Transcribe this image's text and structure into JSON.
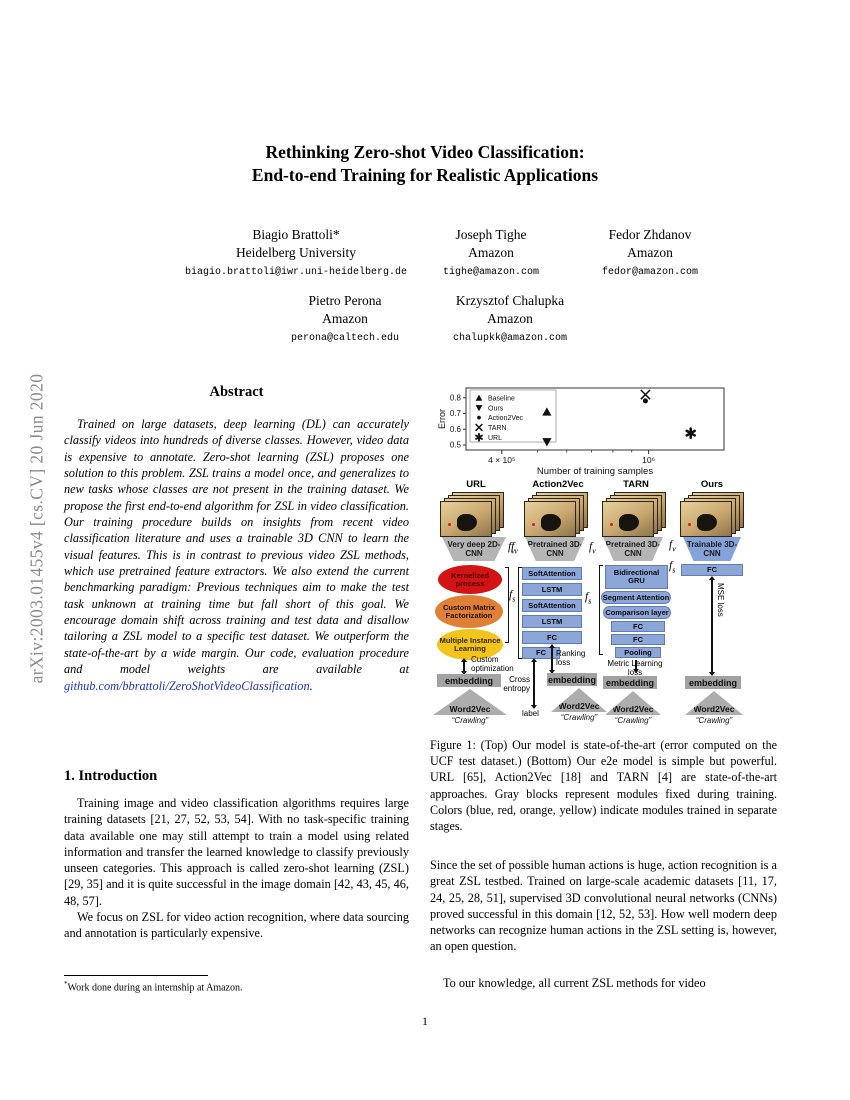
{
  "arxiv_banner": "arXiv:2003.01455v4  [cs.CV]  20 Jun 2020",
  "title": {
    "line1": "Rethinking Zero-shot Video Classification:",
    "line2": "End-to-end Training for Realistic Applications"
  },
  "authors": [
    {
      "name": "Biagio Brattoli*",
      "affiliation": "Heidelberg University",
      "email": "biagio.brattoli@iwr.uni-heidelberg.de"
    },
    {
      "name": "Joseph Tighe",
      "affiliation": "Amazon",
      "email": "tighe@amazon.com"
    },
    {
      "name": "Fedor Zhdanov",
      "affiliation": "Amazon",
      "email": "fedor@amazon.com"
    },
    {
      "name": "Pietro Perona",
      "affiliation": "Amazon",
      "email": "perona@caltech.edu"
    },
    {
      "name": "Krzysztof Chalupka",
      "affiliation": "Amazon",
      "email": "chalupkk@amazon.com"
    }
  ],
  "abstract": {
    "heading": "Abstract",
    "text": "Trained on large datasets, deep learning (DL) can accurately classify videos into hundreds of diverse classes. However, video data is expensive to annotate. Zero-shot learning (ZSL) proposes one solution to this problem. ZSL trains a model once, and generalizes to new tasks whose classes are not present in the training dataset. We propose the first end-to-end algorithm for ZSL in video classification. Our training procedure builds on insights from recent video classification literature and uses a trainable 3D CNN to learn the visual features. This is in contrast to previous video ZSL methods, which use pretrained feature extractors. We also extend the current benchmarking paradigm: Previous techniques aim to make the test task unknown at training time but fall short of this goal. We encourage domain shift across training and test data and disallow tailoring a ZSL model to a specific test dataset. We outperform the state-of-the-art by a wide margin. Our code, evaluation procedure and model weights are available at ",
    "link_text": "github.com/bbrattoli/ZeroShotVideoClassification",
    "after_link": "."
  },
  "sections": {
    "intro_heading": "1. Introduction",
    "intro_p1": "Training image and video classification algorithms requires large training datasets [21, 27, 52, 53, 54].  With no task-specific training data available one may still attempt to train a model using related information and transfer the learned knowledge to classify previously unseen categories.  This approach is called zero-shot learning (ZSL) [29, 35] and it is quite successful in the image domain [42, 43, 45, 46, 48, 57].",
    "intro_p2": "We focus on ZSL for video action recognition, where data sourcing and annotation is particularly expensive."
  },
  "footnote": {
    "marker": "*",
    "text": "Work done during an internship at Amazon."
  },
  "right_column": {
    "p1": "Since the set of possible human actions is huge, action recognition is a great ZSL testbed.  Trained on large-scale academic datasets [11, 17, 24, 25, 28, 51], supervised 3D convolutional neural networks (CNNs) proved successful in this domain [12, 52, 53].  How well modern deep networks can recognize human actions in the ZSL setting is, however, an open question.",
    "p2": "To our knowledge, all current ZSL methods for video"
  },
  "page_number": "1",
  "chart_data": {
    "type": "scatter",
    "xlabel": "Number of training samples",
    "ylabel": "Error",
    "x_scale": "log",
    "xlim": [
      320000,
      1600000
    ],
    "ylim": [
      0.468,
      0.862
    ],
    "yticks": [
      0.5,
      0.6,
      0.7,
      0.8
    ],
    "xticks": [
      {
        "value": 400000,
        "label": "4 × 10⁵"
      },
      {
        "value": 1000000,
        "label": "10⁶"
      }
    ],
    "x_minor_ticks": [
      400000,
      500000,
      600000,
      700000,
      800000,
      900000,
      1000000
    ],
    "grid": false,
    "legend_position": "upper left",
    "series": [
      {
        "name": "Baseline",
        "marker": "triangle-up",
        "points": [
          [
            530000,
            0.71
          ]
        ]
      },
      {
        "name": "Ours",
        "marker": "triangle-down",
        "points": [
          [
            530000,
            0.52
          ]
        ]
      },
      {
        "name": "Action2Vec",
        "marker": "circle",
        "points": [
          [
            980000,
            0.78
          ]
        ]
      },
      {
        "name": "TARN",
        "marker": "x",
        "points": [
          [
            980000,
            0.82
          ]
        ]
      },
      {
        "name": "URL",
        "marker": "asterisk",
        "points": [
          [
            1300000,
            0.575
          ]
        ]
      }
    ]
  },
  "figure": {
    "caption": "Figure 1:  (Top) Our model is state-of-the-art (error computed on the UCF test dataset.)  (Bottom) Our e2e model is simple but powerful.  URL [65], Action2Vec [18] and TARN [4] are state-of-the-art approaches. Gray blocks represent modules fixed during training.  Colors (blue, red, orange, yellow) indicate modules trained in separate stages.",
    "diagram": {
      "f_symbol": "f",
      "sub_v": "v",
      "sub_s": "s",
      "embedding_label": "embedding",
      "word2vec_label": "Word2Vec",
      "crawling_label": "“Crawling”",
      "colors": {
        "module_blue": "#8ca6d8",
        "fixed_gray": "#b5b5b5",
        "stage_red": "#d21414",
        "stage_orange": "#e08036",
        "stage_yellow": "#f2c41c"
      },
      "columns": [
        {
          "name": "URL",
          "extractor": "Very deep 2D-CNN",
          "modules": [
            "Kernelized process",
            "Custom Matrix Factorization",
            "Multiple Instance Learning"
          ],
          "loss": "Custom optimization"
        },
        {
          "name": "Action2Vec",
          "extractor": "Pretrained 3D-CNN",
          "modules": [
            "SoftAttention",
            "LSTM",
            "SoftAttention",
            "LSTM",
            "FC",
            "FC"
          ],
          "loss_left": "Cross entropy",
          "loss_left_target": "label",
          "loss_right": "Ranking loss"
        },
        {
          "name": "TARN",
          "extractor": "Pretrained 3D-CNN",
          "modules": [
            "Bidirectional GRU",
            "Segment Attention",
            "Comparison layer",
            "FC",
            "FC",
            "Pooling"
          ],
          "loss": "Metric Learning loss"
        },
        {
          "name": "Ours",
          "extractor": "Trainable 3D-CNN",
          "modules": [
            "FC"
          ],
          "loss": "MSE loss"
        }
      ]
    }
  }
}
